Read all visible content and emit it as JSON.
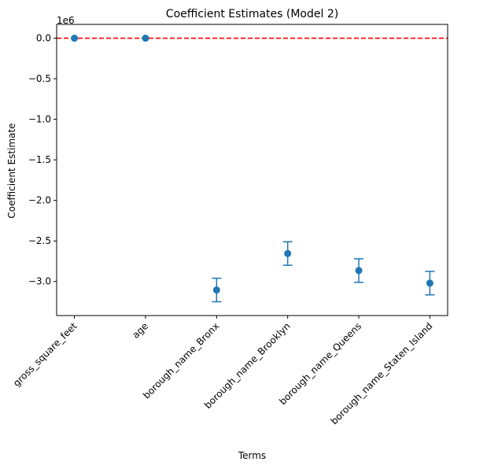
{
  "chart_data": {
    "type": "scatter",
    "title": "Coefficient Estimates (Model 2)",
    "xlabel": "Terms",
    "ylabel": "Coefficient Estimate",
    "y_offset_label": "1e6",
    "categories": [
      "gross_square_feet",
      "age",
      "borough_name_Bronx",
      "borough_name_Brooklyn",
      "borough_name_Queens",
      "borough_name_Staten_Island"
    ],
    "values": [
      0,
      0,
      -3.105,
      -2.655,
      -2.865,
      -3.02
    ],
    "errors": [
      0,
      0,
      0.145,
      0.145,
      0.145,
      0.145
    ],
    "y_scale": 1000000,
    "ylim": [
      -3.42,
      0.17
    ],
    "yticks": [
      0.0,
      -0.5,
      -1.0,
      -1.5,
      -2.0,
      -2.5,
      -3.0
    ],
    "ytick_labels": [
      "0.0",
      "−0.5",
      "−1.0",
      "−1.5",
      "−2.0",
      "−2.5",
      "−3.0"
    ],
    "reference_line": {
      "y": 0,
      "style": "dashed",
      "color": "#ff0000"
    },
    "marker_color": "#1f77b4",
    "grid": false,
    "legend": "none"
  }
}
